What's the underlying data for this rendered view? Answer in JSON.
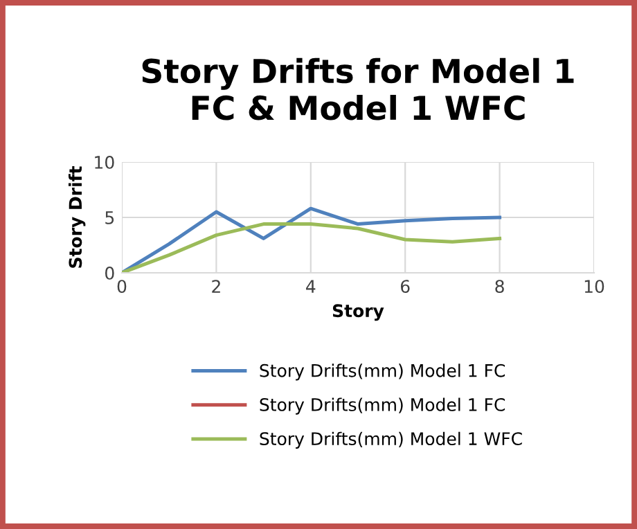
{
  "chart_data": {
    "type": "line",
    "title": "Story Drifts for Model 1\nFC & Model 1 WFC",
    "xlabel": "Story",
    "ylabel": "Story Drift",
    "x": [
      0,
      1,
      2,
      3,
      4,
      5,
      6,
      7,
      8
    ],
    "series": [
      {
        "name": "Story Drifts(mm) Model 1 FC",
        "color": "#4f81bd",
        "values": [
          0,
          2.6,
          5.5,
          3.1,
          5.8,
          4.4,
          4.7,
          4.9,
          5.0
        ]
      },
      {
        "name": "Story Drifts(mm) Model 1 FC",
        "color": "#c0504d",
        "values": [
          null,
          null,
          null,
          null,
          null,
          null,
          null,
          null,
          null
        ]
      },
      {
        "name": "Story Drifts(mm) Model 1 WFC",
        "color": "#9bbb59",
        "values": [
          0,
          1.6,
          3.4,
          4.4,
          4.4,
          4.0,
          3.0,
          2.8,
          3.1
        ]
      }
    ],
    "xlim": [
      0,
      10
    ],
    "xticks": [
      0,
      2,
      4,
      6,
      8,
      10
    ],
    "ylim": [
      0,
      10
    ],
    "yticks": [
      0,
      5,
      10
    ],
    "grid": true,
    "legend": "bottom",
    "marker": "none",
    "line_style": "solid"
  }
}
